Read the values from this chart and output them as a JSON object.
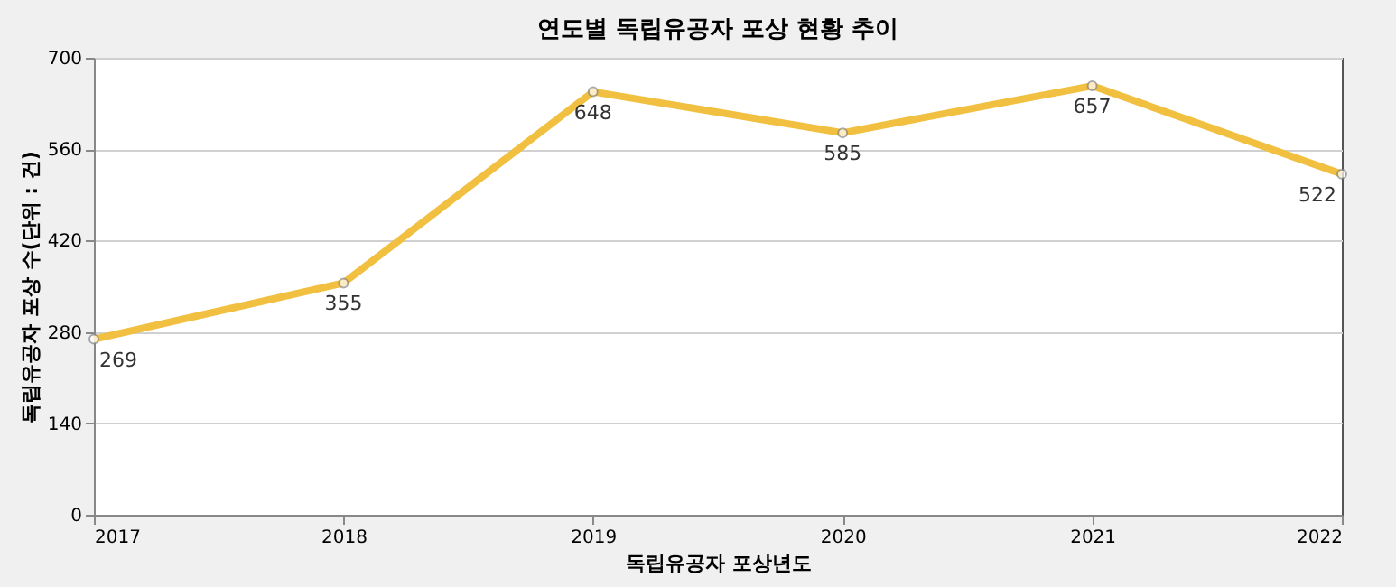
{
  "chart_data": {
    "type": "line",
    "title": "연도별 독립유공자 포상 현황 추이",
    "xlabel": "독립유공자 포상년도",
    "ylabel": "독립유공자 포상 수(단위 : 건)",
    "categories": [
      "2017",
      "2018",
      "2019",
      "2020",
      "2021",
      "2022"
    ],
    "series": [
      {
        "color": "#f2c040",
        "values": [
          269,
          355,
          648,
          585,
          657,
          522
        ]
      }
    ],
    "ylim": [
      0,
      700
    ],
    "yticks": [
      0,
      140,
      280,
      420,
      560,
      700
    ],
    "grid": "y",
    "marker": "circle",
    "data_labels": true,
    "legend": false
  }
}
